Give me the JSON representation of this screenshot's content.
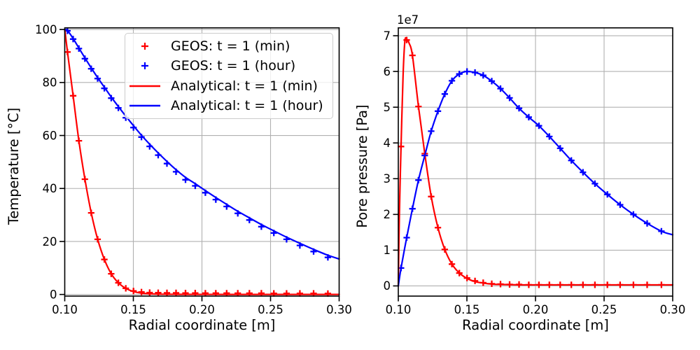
{
  "figure": {
    "background": "#ffffff",
    "title": ""
  },
  "style": {
    "red": "#ff0000",
    "blue": "#0000ff",
    "grid_color": "#b0b0b0",
    "spine_color": "#000000",
    "text_color": "#000000",
    "legend_border": "#cccccc"
  },
  "axes": {
    "left": {
      "xlabel": "Radial coordinate [m]",
      "ylabel": "Temperature [°C]",
      "xtick_labels": [
        "0.10",
        "0.15",
        "0.20",
        "0.25",
        "0.30"
      ],
      "ytick_labels": [
        "0",
        "20",
        "40",
        "60",
        "80",
        "100"
      ]
    },
    "right": {
      "xlabel": "Radial coordinate [m]",
      "ylabel": "Pore pressure [Pa]",
      "offset_text": "1e7",
      "xtick_labels": [
        "0.10",
        "0.15",
        "0.20",
        "0.25",
        "0.30"
      ],
      "ytick_labels": [
        "0",
        "1",
        "2",
        "3",
        "4",
        "5",
        "6",
        "7"
      ]
    }
  },
  "legend": {
    "items": [
      {
        "label": "GEOS: t = 1 (min)",
        "handle": "marker",
        "color": "#ff0000"
      },
      {
        "label": "GEOS: t = 1 (hour)",
        "handle": "marker",
        "color": "#0000ff"
      },
      {
        "label": "Analytical: t = 1 (min)",
        "handle": "line",
        "color": "#ff0000"
      },
      {
        "label": "Analytical: t = 1 (hour)",
        "handle": "line",
        "color": "#0000ff"
      }
    ]
  },
  "chart_data": [
    {
      "type": "line",
      "title": "",
      "xlabel": "Radial coordinate [m]",
      "ylabel": "Temperature [°C]",
      "xlim": [
        0.1,
        0.3
      ],
      "ylim": [
        0,
        100
      ],
      "xticks": [
        0.1,
        0.15,
        0.2,
        0.25,
        0.3
      ],
      "yticks": [
        0,
        20,
        40,
        60,
        80,
        100
      ],
      "grid": true,
      "legend_position": "upper center",
      "series": [
        {
          "name": "GEOS: t = 1 (min)",
          "type": "scatter",
          "marker": "+",
          "color": "#ff0000",
          "x": [
            0.102,
            0.1061,
            0.1103,
            0.1147,
            0.1193,
            0.124,
            0.1289,
            0.1339,
            0.1391,
            0.1445,
            0.1501,
            0.1559,
            0.1619,
            0.1681,
            0.1745,
            0.1811,
            0.188,
            0.1951,
            0.2025,
            0.2101,
            0.218,
            0.2261,
            0.2346,
            0.2433,
            0.2524,
            0.2617,
            0.2714,
            0.2814,
            0.2918
          ],
          "y": [
            91.5,
            75.0,
            58.0,
            43.5,
            30.8,
            20.8,
            13.2,
            7.8,
            4.4,
            2.3,
            1.3,
            0.9,
            0.7,
            0.65,
            0.6,
            0.6,
            0.55,
            0.55,
            0.5,
            0.5,
            0.5,
            0.45,
            0.45,
            0.45,
            0.4,
            0.4,
            0.4,
            0.4,
            0.35
          ]
        },
        {
          "name": "GEOS: t = 1 (hour)",
          "type": "scatter",
          "marker": "+",
          "color": "#0000ff",
          "x": [
            0.102,
            0.1061,
            0.1103,
            0.1147,
            0.1193,
            0.124,
            0.1289,
            0.1339,
            0.1391,
            0.1445,
            0.1501,
            0.1559,
            0.1619,
            0.1681,
            0.1745,
            0.1811,
            0.188,
            0.1951,
            0.2025,
            0.2101,
            0.218,
            0.2261,
            0.2346,
            0.2433,
            0.2524,
            0.2617,
            0.2714,
            0.2814,
            0.2918
          ],
          "y": [
            99.5,
            96.4,
            92.8,
            89.0,
            85.2,
            81.5,
            77.8,
            74.1,
            70.4,
            66.7,
            63.0,
            59.4,
            55.9,
            52.6,
            49.4,
            46.3,
            43.3,
            41.0,
            38.4,
            35.8,
            33.2,
            30.6,
            28.1,
            25.6,
            23.2,
            20.8,
            18.5,
            16.2,
            14.0
          ]
        },
        {
          "name": "Analytical: t = 1 (min)",
          "type": "line",
          "color": "#ff0000",
          "x": [
            0.1,
            0.102,
            0.1061,
            0.1103,
            0.1147,
            0.1193,
            0.124,
            0.1289,
            0.1339,
            0.1391,
            0.1445,
            0.1501,
            0.1559,
            0.1619,
            0.1681,
            0.1745,
            0.1811,
            0.188,
            0.1951,
            0.2025,
            0.2101,
            0.218,
            0.2261,
            0.2346,
            0.2433,
            0.2524,
            0.2617,
            0.2714,
            0.2814,
            0.2918,
            0.3
          ],
          "y": [
            100,
            91.5,
            75.0,
            58.0,
            43.5,
            30.8,
            20.8,
            13.2,
            7.8,
            4.4,
            2.3,
            1.1,
            0.5,
            0.25,
            0.12,
            0.08,
            0.05,
            0.04,
            0.03,
            0.02,
            0.02,
            0.01,
            0.01,
            0.01,
            0.01,
            0.0,
            0.0,
            0.0,
            0.0,
            0.0,
            0.0
          ]
        },
        {
          "name": "Analytical: t = 1 (hour)",
          "type": "line",
          "color": "#0000ff",
          "x": [
            0.1,
            0.102,
            0.1061,
            0.1103,
            0.1147,
            0.1193,
            0.124,
            0.1289,
            0.1339,
            0.1391,
            0.1445,
            0.1501,
            0.1559,
            0.1619,
            0.1681,
            0.1745,
            0.1811,
            0.188,
            0.1951,
            0.2025,
            0.2101,
            0.218,
            0.2261,
            0.2346,
            0.2433,
            0.2524,
            0.2617,
            0.2714,
            0.2814,
            0.2918,
            0.3
          ],
          "y": [
            100,
            99.6,
            96.6,
            93.0,
            89.3,
            85.5,
            81.8,
            78.2,
            74.5,
            70.9,
            67.3,
            63.7,
            60.1,
            56.7,
            53.4,
            50.2,
            47.1,
            44.2,
            41.8,
            39.2,
            36.6,
            34.0,
            31.4,
            28.9,
            26.4,
            24.0,
            21.6,
            19.3,
            17.0,
            14.8,
            13.4
          ]
        }
      ]
    },
    {
      "type": "line",
      "title": "",
      "xlabel": "Radial coordinate [m]",
      "ylabel": "Pore pressure [Pa]",
      "offset_text": "1e7",
      "xlim": [
        0.1,
        0.3
      ],
      "ylim": [
        0,
        72000000.0
      ],
      "xticks": [
        0.1,
        0.15,
        0.2,
        0.25,
        0.3
      ],
      "yticks": [
        0,
        10000000.0,
        20000000.0,
        30000000.0,
        40000000.0,
        50000000.0,
        60000000.0,
        70000000.0
      ],
      "grid": true,
      "series": [
        {
          "name": "GEOS: t = 1 (min)",
          "type": "scatter",
          "marker": "+",
          "color": "#ff0000",
          "x": [
            0.102,
            0.1061,
            0.1103,
            0.1147,
            0.1193,
            0.124,
            0.1289,
            0.1339,
            0.1391,
            0.1445,
            0.1501,
            0.1559,
            0.1619,
            0.1681,
            0.1745,
            0.1811,
            0.188,
            0.1951,
            0.2025,
            0.2101,
            0.218,
            0.2261,
            0.2346,
            0.2433,
            0.2524,
            0.2617,
            0.2714,
            0.2814,
            0.2918
          ],
          "y": [
            39000000.0,
            68800000.0,
            64500000.0,
            50200000.0,
            37000000.0,
            25000000.0,
            16300000.0,
            10200000.0,
            6100000.0,
            3600000.0,
            2200000.0,
            1400000.0,
            900000.0,
            600000.0,
            500000.0,
            400000.0,
            400000.0,
            300000.0,
            300000.0,
            300000.0,
            300000.0,
            300000.0,
            300000.0,
            300000.0,
            300000.0,
            300000.0,
            300000.0,
            300000.0,
            300000.0
          ]
        },
        {
          "name": "GEOS: t = 1 (hour)",
          "type": "scatter",
          "marker": "+",
          "color": "#0000ff",
          "x": [
            0.102,
            0.1061,
            0.1103,
            0.1147,
            0.1193,
            0.124,
            0.1289,
            0.1339,
            0.1391,
            0.1445,
            0.1501,
            0.1559,
            0.1619,
            0.1681,
            0.1745,
            0.1811,
            0.188,
            0.1951,
            0.2025,
            0.2101,
            0.218,
            0.2261,
            0.2346,
            0.2433,
            0.2524,
            0.2617,
            0.2714,
            0.2814,
            0.2918
          ],
          "y": [
            5000000.0,
            13500000.0,
            21600000.0,
            29600000.0,
            36500000.0,
            43300000.0,
            48900000.0,
            53700000.0,
            57400000.0,
            59300000.0,
            60000000.0,
            59700000.0,
            58900000.0,
            57300000.0,
            55200000.0,
            52600000.0,
            49700000.0,
            47200000.0,
            44800000.0,
            41800000.0,
            38500000.0,
            35100000.0,
            31800000.0,
            28600000.0,
            25600000.0,
            22700000.0,
            20000000.0,
            17500000.0,
            15300000.0
          ]
        },
        {
          "name": "Analytical: t = 1 (min)",
          "type": "line",
          "color": "#ff0000",
          "x": [
            0.1,
            0.1008,
            0.102,
            0.1035,
            0.1048,
            0.1061,
            0.108,
            0.1103,
            0.1147,
            0.1193,
            0.124,
            0.1289,
            0.1339,
            0.1391,
            0.1445,
            0.1501,
            0.1559,
            0.1619,
            0.1681,
            0.1745,
            0.1811,
            0.188,
            0.1951,
            0.2025,
            0.2101,
            0.218,
            0.2261,
            0.2346,
            0.2433,
            0.2524,
            0.2617,
            0.2714,
            0.2814,
            0.2918,
            0.3
          ],
          "y": [
            0,
            20000000.0,
            39000000.0,
            59000000.0,
            68500000.0,
            69000000.0,
            67800000.0,
            64500000.0,
            50200000.0,
            37000000.0,
            25000000.0,
            16300000.0,
            10200000.0,
            6100000.0,
            3600000.0,
            2100000.0,
            1200000.0,
            800000.0,
            500000.0,
            400000.0,
            350000.0,
            300000.0,
            300000.0,
            300000.0,
            300000.0,
            300000.0,
            300000.0,
            300000.0,
            300000.0,
            300000.0,
            300000.0,
            300000.0,
            300000.0,
            300000.0,
            300000.0
          ]
        },
        {
          "name": "Analytical: t = 1 (hour)",
          "type": "line",
          "color": "#0000ff",
          "x": [
            0.1,
            0.102,
            0.1061,
            0.1103,
            0.1147,
            0.1193,
            0.124,
            0.1289,
            0.1339,
            0.1391,
            0.1445,
            0.1501,
            0.1559,
            0.1619,
            0.1681,
            0.1745,
            0.1811,
            0.188,
            0.1951,
            0.2025,
            0.2101,
            0.218,
            0.2261,
            0.2346,
            0.2433,
            0.2524,
            0.2617,
            0.2714,
            0.2814,
            0.2918,
            0.3
          ],
          "y": [
            0,
            5000000.0,
            13500000.0,
            21600000.0,
            29600000.0,
            36500000.0,
            43300000.0,
            48900000.0,
            53700000.0,
            57400000.0,
            59300000.0,
            60000000.0,
            59700000.0,
            58900000.0,
            57300000.0,
            55200000.0,
            52600000.0,
            49700000.0,
            47200000.0,
            44800000.0,
            41800000.0,
            38500000.0,
            35100000.0,
            31800000.0,
            28600000.0,
            25600000.0,
            22700000.0,
            20000000.0,
            17500000.0,
            15300000.0,
            14300000.0
          ]
        }
      ]
    }
  ]
}
